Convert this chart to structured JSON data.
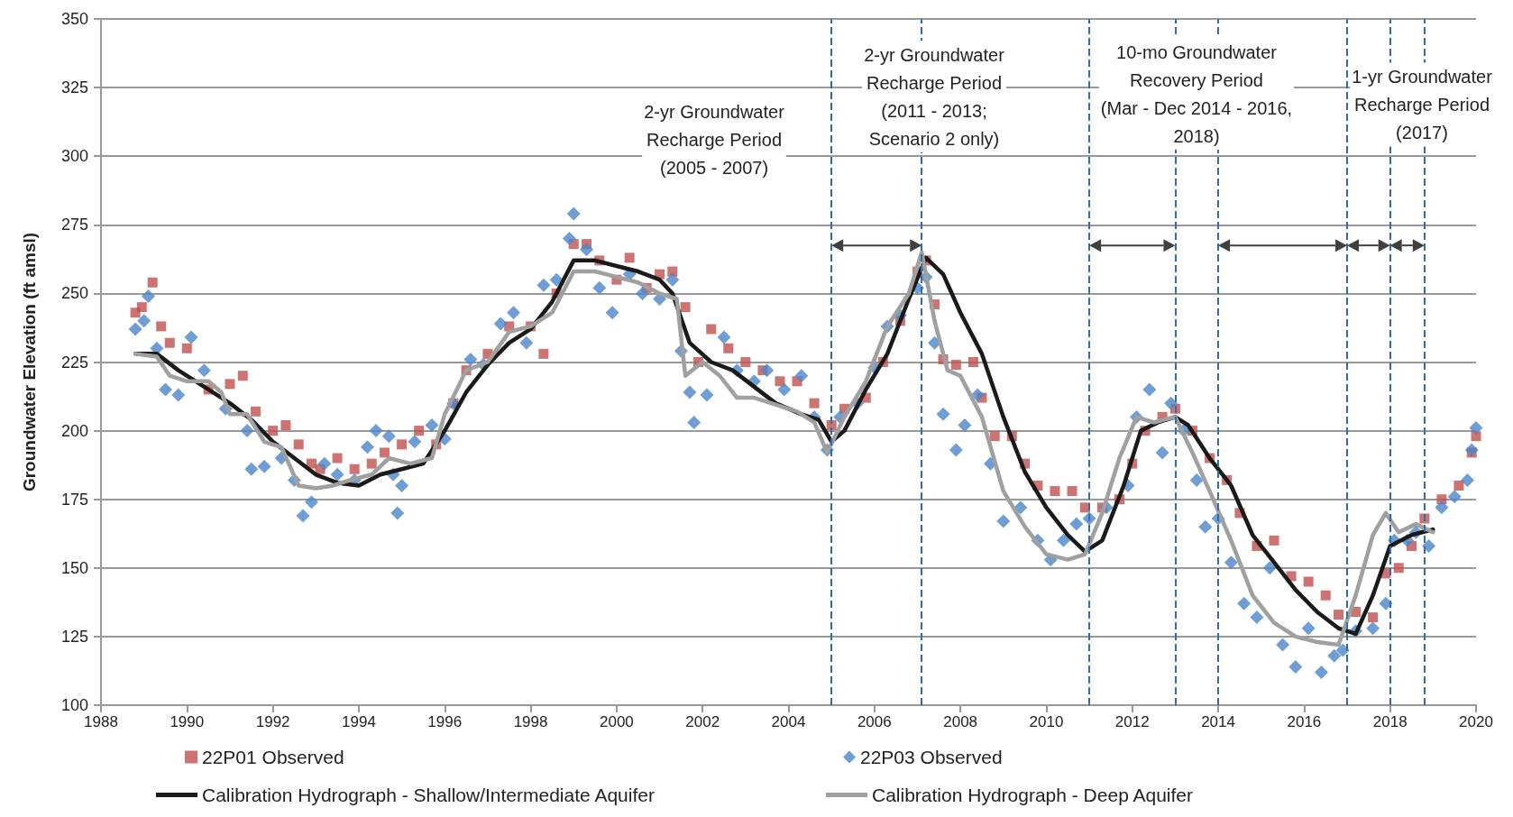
{
  "chart_data": {
    "type": "line",
    "ylabel": "Groundwater Elevation (ft amsl)",
    "xlim": [
      1988,
      2020
    ],
    "xticks": [
      1988,
      1990,
      1992,
      1994,
      1996,
      1998,
      2000,
      2002,
      2004,
      2006,
      2008,
      2010,
      2012,
      2014,
      2016,
      2018,
      2020
    ],
    "ylim": [
      100,
      350
    ],
    "yticks": [
      100,
      125,
      150,
      175,
      200,
      225,
      250,
      275,
      300,
      325,
      350
    ],
    "grid": "y",
    "legend": "bottom",
    "line_style": "solid",
    "series": [
      {
        "name": "22P01 Observed",
        "type": "scatter",
        "marker": "square",
        "color": "#c0504d",
        "x": [
          1988.8,
          1988.95,
          1989.2,
          1989.4,
          1989.6,
          1990.0,
          1990.5,
          1991.0,
          1991.3,
          1991.6,
          1992.0,
          1992.3,
          1992.6,
          1992.9,
          1993.1,
          1993.5,
          1993.9,
          1994.3,
          1994.6,
          1995.0,
          1995.4,
          1995.8,
          1996.2,
          1996.5,
          1997.0,
          1997.5,
          1998.0,
          1998.3,
          1998.6,
          1999.0,
          1999.3,
          1999.6,
          2000.0,
          2000.3,
          2000.7,
          2001.0,
          2001.3,
          2001.6,
          2001.9,
          2002.2,
          2002.6,
          2003.0,
          2003.4,
          2003.8,
          2004.2,
          2004.6,
          2005.0,
          2005.3,
          2005.8,
          2006.2,
          2006.6,
          2007.0,
          2007.2,
          2007.4,
          2007.6,
          2007.9,
          2008.3,
          2008.5,
          2008.8,
          2009.2,
          2009.5,
          2009.8,
          2010.2,
          2010.6,
          2010.9,
          2011.3,
          2011.7,
          2012.0,
          2012.3,
          2012.7,
          2013.0,
          2013.4,
          2013.8,
          2014.2,
          2014.5,
          2014.9,
          2015.3,
          2015.7,
          2016.1,
          2016.5,
          2016.8,
          2017.2,
          2017.6,
          2017.9,
          2018.2,
          2018.5,
          2018.8,
          2019.2,
          2019.6,
          2019.9,
          2020.0
        ],
        "values": [
          243,
          245,
          254,
          238,
          232,
          230,
          215,
          217,
          220,
          207,
          200,
          202,
          195,
          188,
          186,
          190,
          186,
          188,
          192,
          195,
          200,
          195,
          210,
          222,
          228,
          238,
          238,
          228,
          250,
          268,
          268,
          262,
          255,
          263,
          252,
          257,
          258,
          245,
          225,
          237,
          230,
          225,
          222,
          218,
          218,
          210,
          202,
          208,
          212,
          225,
          240,
          258,
          262,
          246,
          226,
          224,
          225,
          212,
          198,
          198,
          188,
          180,
          178,
          178,
          172,
          172,
          175,
          188,
          200,
          205,
          208,
          200,
          190,
          182,
          170,
          158,
          160,
          147,
          145,
          140,
          133,
          134,
          132,
          148,
          150,
          158,
          168,
          175,
          180,
          192,
          198
        ]
      },
      {
        "name": "22P03 Observed",
        "type": "scatter",
        "marker": "diamond",
        "color": "#4a86c8",
        "x": [
          1988.8,
          1989.0,
          1989.1,
          1989.3,
          1989.5,
          1989.8,
          1990.1,
          1990.4,
          1990.9,
          1991.4,
          1991.5,
          1991.8,
          1992.2,
          1992.5,
          1992.7,
          1992.9,
          1993.2,
          1993.5,
          1993.9,
          1994.2,
          1994.4,
          1994.7,
          1994.8,
          1994.9,
          1995.0,
          1995.3,
          1995.7,
          1996.0,
          1996.2,
          1996.6,
          1996.9,
          1997.3,
          1997.6,
          1997.9,
          1998.3,
          1998.6,
          1998.9,
          1999.0,
          1999.3,
          1999.6,
          1999.9,
          2000.3,
          2000.6,
          2001.0,
          2001.3,
          2001.5,
          2001.7,
          2001.8,
          2002.1,
          2002.5,
          2002.8,
          2003.2,
          2003.5,
          2003.9,
          2004.3,
          2004.6,
          2004.9,
          2005.2,
          2005.6,
          2006.0,
          2006.3,
          2006.6,
          2007.0,
          2007.2,
          2007.4,
          2007.6,
          2007.9,
          2008.1,
          2008.4,
          2008.7,
          2009.0,
          2009.4,
          2009.8,
          2010.1,
          2010.4,
          2010.7,
          2011.0,
          2011.4,
          2011.9,
          2012.1,
          2012.4,
          2012.7,
          2012.9,
          2013.2,
          2013.5,
          2013.7,
          2014.0,
          2014.3,
          2014.6,
          2014.9,
          2015.2,
          2015.5,
          2015.8,
          2016.1,
          2016.4,
          2016.7,
          2016.9,
          2017.2,
          2017.6,
          2017.9,
          2018.1,
          2018.4,
          2018.6,
          2018.9,
          2019.2,
          2019.5,
          2019.8,
          2019.9,
          2020.0
        ],
        "values": [
          237,
          240,
          249,
          230,
          215,
          213,
          234,
          222,
          208,
          200,
          186,
          187,
          190,
          182,
          169,
          174,
          188,
          184,
          182,
          194,
          200,
          198,
          184,
          170,
          180,
          196,
          202,
          197,
          210,
          226,
          224,
          239,
          243,
          232,
          253,
          255,
          270,
          279,
          266,
          252,
          243,
          257,
          250,
          248,
          255,
          229,
          214,
          203,
          213,
          234,
          222,
          218,
          222,
          215,
          220,
          205,
          193,
          205,
          210,
          223,
          238,
          242,
          252,
          256,
          232,
          206,
          193,
          202,
          213,
          188,
          167,
          172,
          160,
          153,
          160,
          166,
          168,
          172,
          180,
          205,
          215,
          192,
          210,
          200,
          182,
          165,
          168,
          152,
          137,
          132,
          150,
          122,
          114,
          128,
          112,
          118,
          120,
          127,
          128,
          137,
          160,
          160,
          163,
          158,
          172,
          176,
          182,
          193,
          201
        ]
      },
      {
        "name": "Calibration Hydrograph - Shallow/Intermediate Aquifer",
        "type": "line",
        "marker": "none",
        "color": "#1a1a1a",
        "x": [
          1988.8,
          1989.3,
          1989.8,
          1990.5,
          1991.0,
          1991.5,
          1992.0,
          1992.5,
          1993.0,
          1993.5,
          1994.0,
          1994.5,
          1995.0,
          1995.5,
          1996.0,
          1996.5,
          1997.0,
          1997.5,
          1998.0,
          1998.5,
          1999.0,
          1999.5,
          2000.0,
          2000.5,
          2001.0,
          2001.3,
          2001.7,
          2002.2,
          2002.7,
          2003.2,
          2003.7,
          2004.3,
          2004.7,
          2005.0,
          2005.3,
          2005.8,
          2006.3,
          2006.8,
          2007.2,
          2007.6,
          2008.0,
          2008.5,
          2009.0,
          2009.5,
          2010.0,
          2010.5,
          2010.9,
          2011.3,
          2011.8,
          2012.2,
          2012.6,
          2013.0,
          2013.3,
          2013.8,
          2014.3,
          2014.8,
          2015.3,
          2015.8,
          2016.3,
          2016.8,
          2017.2,
          2017.6,
          2018.0,
          2018.5,
          2019.0
        ],
        "values": [
          228,
          228,
          222,
          215,
          210,
          204,
          196,
          190,
          184,
          181,
          180,
          184,
          186,
          188,
          200,
          214,
          224,
          232,
          237,
          247,
          262,
          262,
          260,
          258,
          255,
          250,
          232,
          225,
          222,
          216,
          210,
          206,
          204,
          196,
          200,
          215,
          228,
          248,
          263,
          257,
          243,
          228,
          205,
          185,
          172,
          162,
          156,
          160,
          180,
          200,
          203,
          205,
          202,
          190,
          180,
          162,
          152,
          142,
          134,
          128,
          126,
          140,
          158,
          162,
          164
        ]
      },
      {
        "name": "Calibration Hydrograph - Deep Aquifer",
        "type": "line",
        "marker": "none",
        "color": "#a0a0a0",
        "x": [
          1988.8,
          1989.3,
          1989.6,
          1990.0,
          1990.5,
          1990.8,
          1991.0,
          1991.4,
          1991.8,
          1992.2,
          1992.6,
          1993.0,
          1993.4,
          1993.8,
          1994.3,
          1994.7,
          1995.2,
          1995.7,
          1996.0,
          1996.5,
          1997.0,
          1997.5,
          1998.0,
          1998.5,
          1999.0,
          1999.5,
          2000.0,
          2000.5,
          2001.0,
          2001.4,
          2001.6,
          2002.0,
          2002.4,
          2002.8,
          2003.2,
          2003.6,
          2004.2,
          2004.6,
          2004.9,
          2005.3,
          2005.8,
          2006.3,
          2006.8,
          2007.1,
          2007.4,
          2007.7,
          2008.0,
          2008.5,
          2009.0,
          2009.5,
          2010.0,
          2010.5,
          2010.9,
          2011.3,
          2011.7,
          2012.1,
          2012.5,
          2013.0,
          2013.4,
          2013.8,
          2014.3,
          2014.8,
          2015.3,
          2015.8,
          2016.3,
          2016.8,
          2017.2,
          2017.6,
          2017.9,
          2018.2,
          2018.6,
          2019.0
        ],
        "values": [
          228,
          227,
          220,
          218,
          218,
          214,
          206,
          206,
          196,
          194,
          180,
          179,
          180,
          182,
          184,
          190,
          188,
          190,
          206,
          222,
          225,
          236,
          238,
          243,
          258,
          258,
          256,
          254,
          250,
          248,
          220,
          225,
          220,
          212,
          212,
          210,
          207,
          203,
          192,
          205,
          218,
          238,
          250,
          265,
          240,
          222,
          220,
          205,
          178,
          165,
          155,
          153,
          155,
          170,
          190,
          205,
          203,
          205,
          192,
          178,
          160,
          140,
          130,
          125,
          123,
          122,
          140,
          162,
          170,
          163,
          166,
          163
        ]
      }
    ],
    "ref_lines": [
      {
        "axis": "x",
        "value": 2005.0,
        "color": "#2e6db4",
        "line_style": "dashed"
      },
      {
        "axis": "x",
        "value": 2007.1,
        "color": "#2e6db4",
        "line_style": "dashed"
      },
      {
        "axis": "x",
        "value": 2011.0,
        "color": "#2e6db4",
        "line_style": "dashed"
      },
      {
        "axis": "x",
        "value": 2013.0,
        "color": "#2e6db4",
        "line_style": "dashed"
      },
      {
        "axis": "x",
        "value": 2014.0,
        "color": "#2e6db4",
        "line_style": "dashed"
      },
      {
        "axis": "x",
        "value": 2017.0,
        "color": "#2e6db4",
        "line_style": "dashed"
      },
      {
        "axis": "x",
        "value": 2018.0,
        "color": "#2e6db4",
        "line_style": "dashed"
      },
      {
        "axis": "x",
        "value": 2018.8,
        "color": "#2e6db4",
        "line_style": "dashed"
      }
    ],
    "annotations": [
      "2-yr Groundwater\nRecharge Period\n(2005 - 2007)",
      "2-yr Groundwater\nRecharge Period\n(2011 - 2013;\nScenario 2 only)",
      "10-mo Groundwater\nRecovery Period\n(Mar - Dec 2014 - 2016,\n2018)",
      "1-yr Groundwater\nRecharge Period\n(2017)"
    ]
  }
}
